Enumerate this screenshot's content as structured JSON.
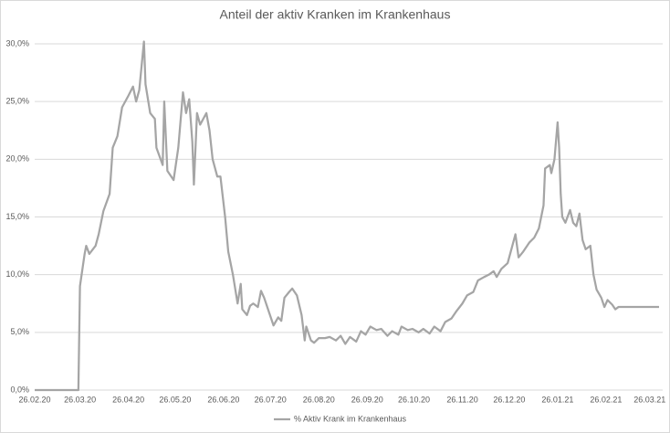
{
  "chart_data": {
    "type": "line",
    "title": "Anteil der aktiv Kranken im Krankenhaus",
    "x": [
      "26.02.20",
      "25.03.20",
      "26.03.20",
      "29.03.20",
      "30.03.20",
      "01.04.20",
      "05.04.20",
      "07.04.20",
      "10.04.20",
      "14.04.20",
      "16.04.20",
      "19.04.20",
      "22.04.20",
      "26.04.20",
      "29.04.20",
      "01.05.20",
      "03.05.20",
      "06.05.20",
      "07.05.20",
      "10.05.20",
      "13.05.20",
      "14.05.20",
      "18.05.20",
      "19.05.20",
      "21.05.20",
      "25.05.20",
      "28.05.20",
      "31.05.20",
      "02.06.20",
      "04.06.20",
      "06.06.20",
      "07.06.20",
      "09.06.20",
      "11.06.20",
      "15.06.20",
      "17.06.20",
      "19.06.20",
      "22.06.20",
      "24.06.20",
      "27.06.20",
      "29.06.20",
      "02.07.20",
      "05.07.20",
      "07.07.20",
      "08.07.20",
      "11.07.20",
      "13.07.20",
      "15.07.20",
      "18.07.20",
      "20.07.20",
      "22.07.20",
      "25.07.20",
      "28.07.20",
      "31.07.20",
      "02.08.20",
      "04.08.20",
      "07.08.20",
      "09.08.20",
      "12.08.20",
      "15.08.20",
      "17.08.20",
      "18.08.20",
      "21.08.20",
      "23.08.20",
      "26.08.20",
      "30.08.20",
      "02.09.20",
      "06.09.20",
      "09.09.20",
      "12.09.20",
      "15.09.20",
      "19.09.20",
      "22.09.20",
      "25.09.20",
      "28.09.20",
      "02.10.20",
      "05.10.20",
      "09.10.20",
      "12.10.20",
      "16.10.20",
      "18.10.20",
      "22.10.20",
      "25.10.20",
      "29.10.20",
      "01.11.20",
      "05.11.20",
      "08.11.20",
      "12.11.20",
      "15.11.20",
      "19.11.20",
      "22.11.20",
      "26.11.20",
      "29.11.20",
      "03.12.20",
      "06.12.20",
      "10.12.20",
      "13.12.20",
      "16.12.20",
      "18.12.20",
      "21.12.20",
      "25.12.20",
      "27.12.20",
      "30.12.20",
      "01.01.21",
      "04.01.21",
      "08.01.21",
      "11.01.21",
      "14.01.21",
      "17.01.21",
      "18.01.21",
      "21.01.21",
      "22.01.21",
      "24.01.21",
      "26.01.21",
      "27.01.21",
      "28.01.21",
      "29.01.21",
      "31.01.21",
      "03.02.21",
      "05.02.21",
      "07.02.21",
      "09.02.21",
      "11.02.21",
      "13.02.21",
      "16.02.21",
      "18.02.21",
      "20.02.21",
      "23.02.21",
      "25.02.21",
      "27.02.21",
      "02.03.21",
      "04.03.21",
      "06.03.21",
      "09.03.21",
      "01.04.21"
    ],
    "series": [
      {
        "name": "% Aktiv Krank im Krankenhaus",
        "color": "#a5a5a5",
        "values": [
          0,
          0,
          9.0,
          11.8,
          12.5,
          11.8,
          12.5,
          13.5,
          15.5,
          17,
          21,
          22,
          24.5,
          25.5,
          26.3,
          25,
          26,
          30.2,
          26.5,
          24,
          23.5,
          21,
          19.5,
          25,
          19,
          18.2,
          21,
          25.8,
          24,
          25.2,
          21.5,
          17.8,
          24,
          23,
          24,
          22.5,
          20,
          18.5,
          18.5,
          15,
          12,
          10,
          7.5,
          9.2,
          7,
          6.5,
          7.3,
          7.5,
          7.2,
          8.6,
          8,
          6.8,
          5.6,
          6.3,
          6,
          8,
          8.5,
          8.8,
          8.2,
          6.5,
          4.3,
          5.5,
          4.3,
          4.1,
          4.5,
          4.5,
          4.6,
          4.3,
          4.7,
          4.0,
          4.6,
          4.2,
          5.1,
          4.8,
          5.5,
          5.2,
          5.3,
          4.7,
          5.1,
          4.8,
          5.5,
          5.2,
          5.3,
          5.0,
          5.3,
          4.9,
          5.5,
          5.1,
          5.9,
          6.2,
          6.8,
          7.5,
          8.2,
          8.5,
          9.5,
          9.8,
          10,
          10.3,
          9.8,
          10.5,
          11,
          12,
          13.5,
          11.5,
          12,
          12.8,
          13.2,
          14,
          16,
          19.2,
          19.5,
          18.8,
          20,
          23.2,
          21,
          17,
          15,
          14.5,
          15.6,
          14.5,
          14.2,
          15.3,
          13,
          12.2,
          12.5,
          10,
          8.7,
          8,
          7.2,
          7.8,
          7.4,
          7.0,
          7.2,
          7.2,
          7.2
        ]
      }
    ],
    "xlim": [
      "26.02.20",
      "01.04.21"
    ],
    "xticks": [
      "26.02.20",
      "26.03.20",
      "26.04.20",
      "26.05.20",
      "26.06.20",
      "26.07.20",
      "26.08.20",
      "26.09.20",
      "26.10.20",
      "26.11.20",
      "26.12.20",
      "26.01.21",
      "26.02.21",
      "26.03.21"
    ],
    "ylim": [
      0,
      30
    ],
    "yticks": [
      {
        "value": 0,
        "label": "0,0%"
      },
      {
        "value": 5,
        "label": "5,0%"
      },
      {
        "value": 10,
        "label": "10,0%"
      },
      {
        "value": 15,
        "label": "15,0%"
      },
      {
        "value": 20,
        "label": "20,0%"
      },
      {
        "value": 25,
        "label": "25,0%"
      },
      {
        "value": 30,
        "label": "30,0%"
      }
    ],
    "grid": true,
    "legend": "bottom"
  }
}
